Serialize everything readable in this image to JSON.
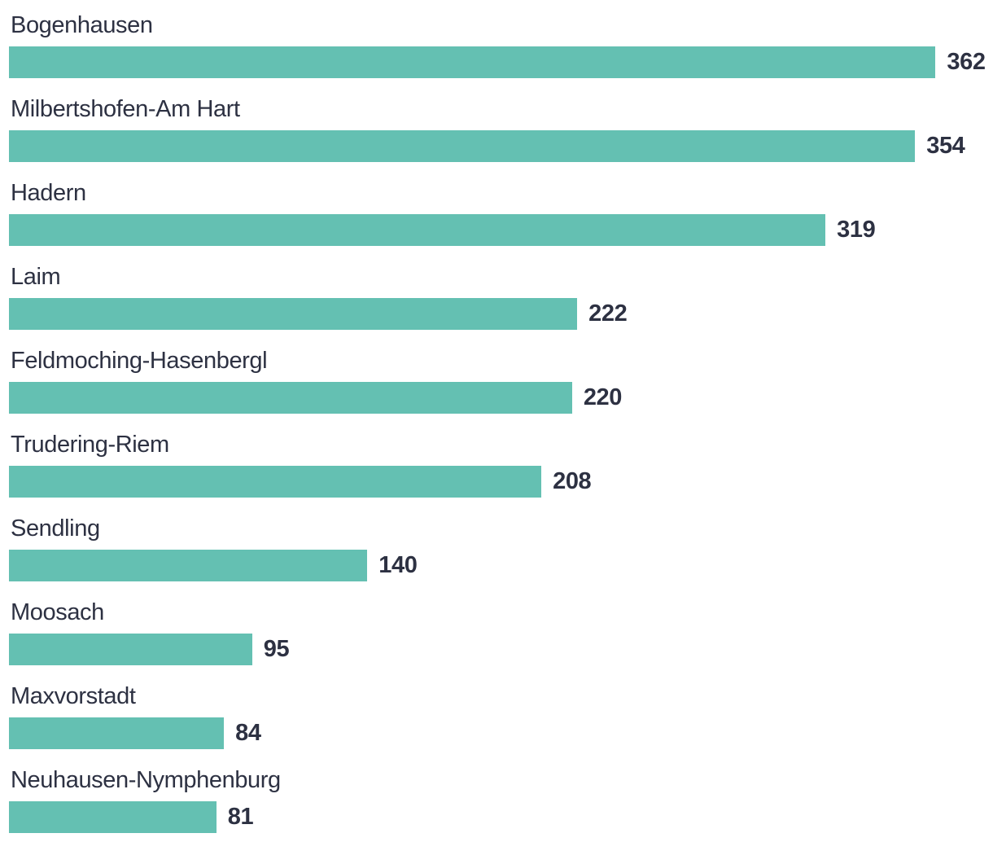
{
  "chart_data": {
    "type": "bar",
    "orientation": "horizontal",
    "title": "",
    "xlabel": "",
    "ylabel": "",
    "grid": false,
    "legend": false,
    "value_label_position": "end-of-bar",
    "xlim": [
      0,
      380
    ],
    "categories": [
      "Bogenhausen",
      "Milbertshofen-Am Hart",
      "Hadern",
      "Laim",
      "Feldmoching-Hasenbergl",
      "Trudering-Riem",
      "Sendling",
      "Moosach",
      "Maxvorstadt",
      "Neuhausen-Nymphenburg"
    ],
    "values": [
      362,
      354,
      319,
      222,
      220,
      208,
      140,
      95,
      84,
      81
    ],
    "colors": {
      "bar": "#64c0b2",
      "label_text": "#2d3142",
      "value_text": "#2d3142",
      "background": "#ffffff"
    }
  }
}
